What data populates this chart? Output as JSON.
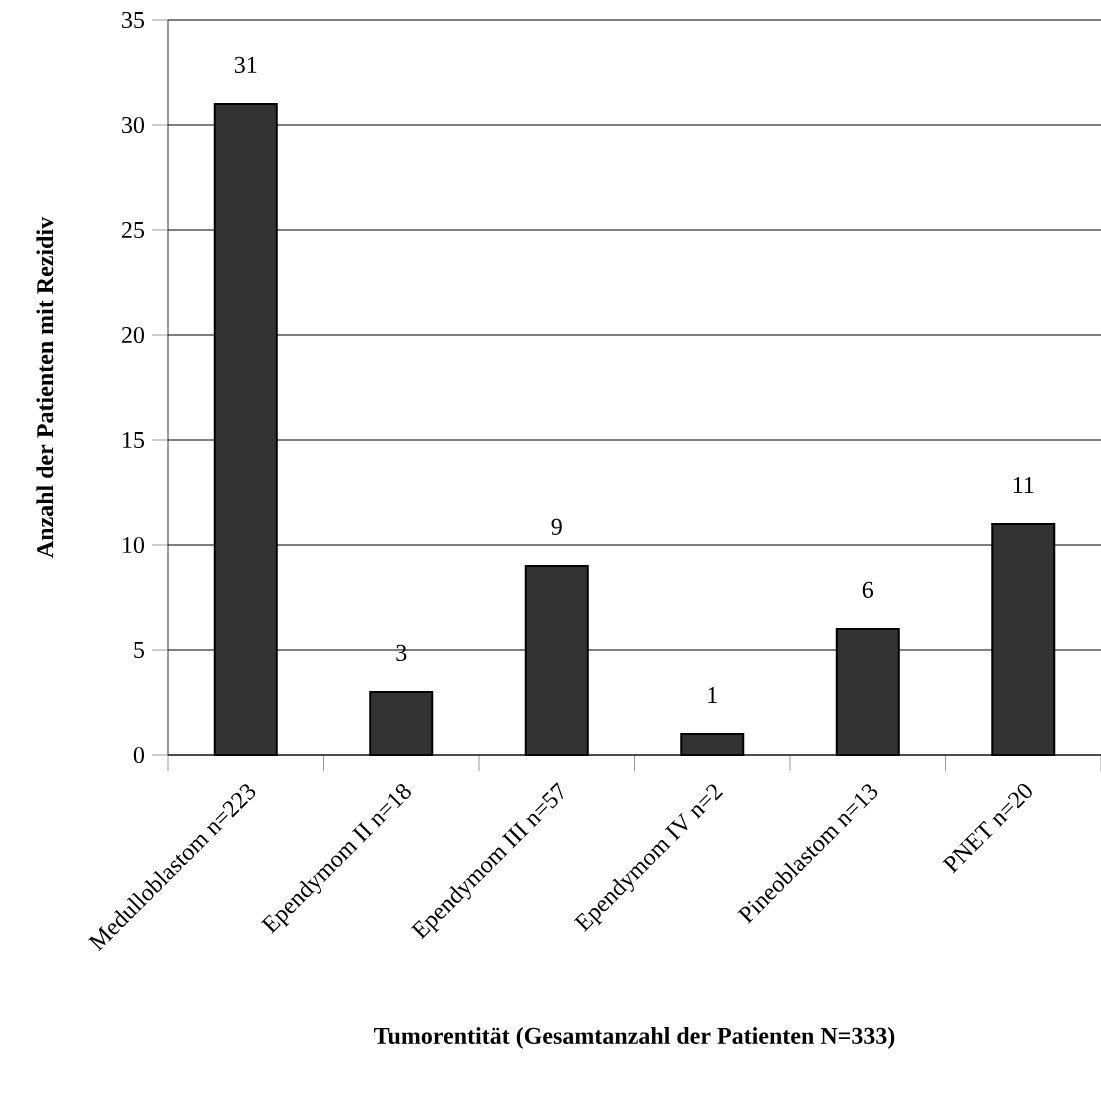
{
  "chart_data": {
    "type": "bar",
    "categories": [
      "Medulloblastom n=223",
      "Ependymom II n=18",
      "Ependymom III n=57",
      "Ependymom IV n=2",
      "Pineoblastom n=13",
      "PNET n=20"
    ],
    "values": [
      31,
      3,
      9,
      1,
      6,
      11
    ],
    "color": "#333333",
    "xlabel": "Tumorentität (Gesamtanzahl der Patienten N=333)",
    "ylabel": "Anzahl der Patienten mit Rezidiv",
    "ylim": [
      0,
      35
    ],
    "yticks": [
      0,
      5,
      10,
      15,
      20,
      25,
      30,
      35
    ],
    "grid": "y",
    "data_labels": true
  }
}
